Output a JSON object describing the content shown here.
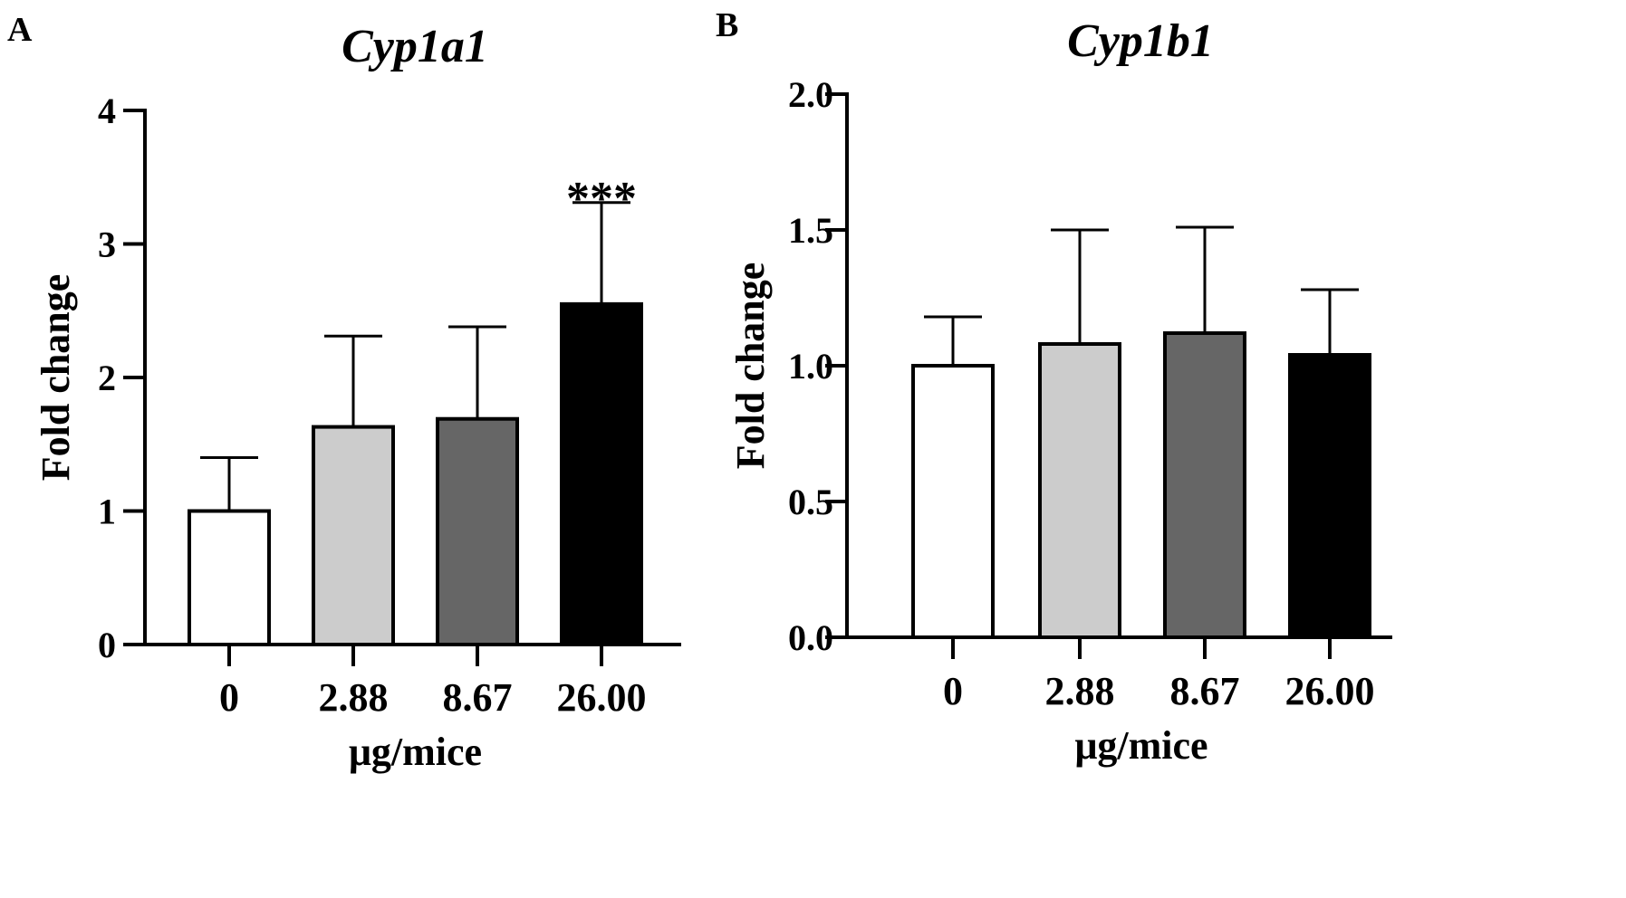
{
  "figure": {
    "panel_labels": [
      "A",
      "B"
    ]
  },
  "chart_data": [
    {
      "type": "bar",
      "panel": "A",
      "title": "Cyp1a1",
      "xlabel": "μg/mice",
      "ylabel": "Fold change",
      "categories": [
        "0",
        "2.88",
        "8.67",
        "26.00"
      ],
      "values": [
        1.0,
        1.63,
        1.69,
        2.55
      ],
      "errors": [
        0.4,
        0.68,
        0.69,
        0.76
      ],
      "bar_colors": [
        "#ffffff",
        "#cccccc",
        "#666666",
        "#000000"
      ],
      "ylim": [
        0,
        4
      ],
      "yticks": [
        "0",
        "1",
        "2",
        "3",
        "4"
      ],
      "ytick_values": [
        0,
        1,
        2,
        3,
        4
      ],
      "annotations": [
        {
          "category": "26.00",
          "text": "***"
        }
      ],
      "grid": false
    },
    {
      "type": "bar",
      "panel": "B",
      "title": "Cyp1b1",
      "xlabel": "μg/mice",
      "ylabel": "Fold change",
      "categories": [
        "0",
        "2.88",
        "8.67",
        "26.00"
      ],
      "values": [
        1.0,
        1.08,
        1.12,
        1.04
      ],
      "errors": [
        0.18,
        0.42,
        0.39,
        0.24
      ],
      "bar_colors": [
        "#ffffff",
        "#cccccc",
        "#666666",
        "#000000"
      ],
      "ylim": [
        0,
        2.0
      ],
      "yticks": [
        "0.0",
        "0.5",
        "1.0",
        "1.5",
        "2.0"
      ],
      "ytick_values": [
        0,
        0.5,
        1.0,
        1.5,
        2.0
      ],
      "annotations": [],
      "grid": false
    }
  ]
}
